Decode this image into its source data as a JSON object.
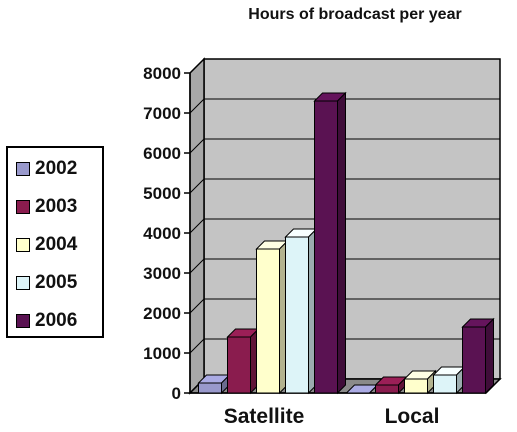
{
  "chart_data": {
    "type": "bar",
    "title": "Hours of broadcast per year",
    "categories": [
      "Satellite",
      "Local"
    ],
    "series": [
      {
        "name": "2002",
        "values": [
          250,
          0
        ],
        "color": "#9999cc"
      },
      {
        "name": "2003",
        "values": [
          1400,
          200
        ],
        "color": "#8a1c4e"
      },
      {
        "name": "2004",
        "values": [
          3600,
          350
        ],
        "color": "#ffffcc"
      },
      {
        "name": "2005",
        "values": [
          3900,
          450
        ],
        "color": "#ddf4f8"
      },
      {
        "name": "2006",
        "values": [
          7300,
          1650
        ],
        "color": "#5a1252"
      }
    ],
    "ylim": [
      0,
      8000
    ],
    "yticks": [
      "0",
      "1000",
      "2000",
      "3000",
      "4000",
      "5000",
      "6000",
      "7000",
      "8000"
    ],
    "xlabel": "",
    "ylabel": "",
    "grid": true,
    "legend_position": "left"
  }
}
